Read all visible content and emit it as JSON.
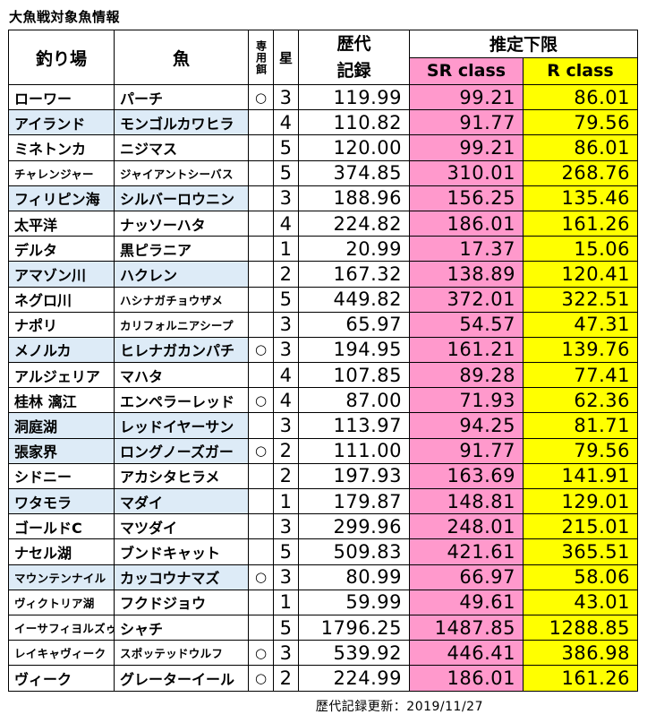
{
  "title": "大魚戦対象魚情報",
  "headers": {
    "location": "釣り場",
    "fish": "魚",
    "bait": "専用餌",
    "star": "星",
    "record_line1": "歴代",
    "record_line2": "記録",
    "limit": "推定下限",
    "sr": "SR class",
    "r": "R class"
  },
  "rows": [
    {
      "loc": "ローワー",
      "fish": "パーチ",
      "bait": "○",
      "star": "3",
      "record": "119.99",
      "sr": "99.21",
      "r": "86.01"
    },
    {
      "loc": "アイランド",
      "fish": "モンゴルカワヒラ",
      "bait": "",
      "star": "4",
      "record": "110.82",
      "sr": "91.77",
      "r": "79.56"
    },
    {
      "loc": "ミネトンカ",
      "fish": "ニジマス",
      "bait": "",
      "star": "5",
      "record": "120.00",
      "sr": "99.21",
      "r": "86.01"
    },
    {
      "loc": "チャレンジャー",
      "fish": "ジャイアントシーバス",
      "bait": "",
      "star": "5",
      "record": "374.85",
      "sr": "310.01",
      "r": "268.76"
    },
    {
      "loc": "フィリピン海",
      "fish": "シルバーロウニン",
      "bait": "",
      "star": "3",
      "record": "188.96",
      "sr": "156.25",
      "r": "135.46"
    },
    {
      "loc": "太平洋",
      "fish": "ナッソーハタ",
      "bait": "",
      "star": "4",
      "record": "224.82",
      "sr": "186.01",
      "r": "161.26"
    },
    {
      "loc": "デルタ",
      "fish": "黒ピラニア",
      "bait": "",
      "star": "1",
      "record": "20.99",
      "sr": "17.37",
      "r": "15.06"
    },
    {
      "loc": "アマゾン川",
      "fish": "ハクレン",
      "bait": "",
      "star": "2",
      "record": "167.32",
      "sr": "138.89",
      "r": "120.41"
    },
    {
      "loc": "ネグロ川",
      "fish": "ハシナガチョウザメ",
      "bait": "",
      "star": "5",
      "record": "449.82",
      "sr": "372.01",
      "r": "322.51"
    },
    {
      "loc": "ナポリ",
      "fish": "カリフォルニアシープ",
      "bait": "",
      "star": "3",
      "record": "65.97",
      "sr": "54.57",
      "r": "47.31"
    },
    {
      "loc": "メノルカ",
      "fish": "ヒレナガカンパチ",
      "bait": "○",
      "star": "3",
      "record": "194.95",
      "sr": "161.21",
      "r": "139.76"
    },
    {
      "loc": "アルジェリア",
      "fish": "マハタ",
      "bait": "",
      "star": "4",
      "record": "107.85",
      "sr": "89.28",
      "r": "77.41"
    },
    {
      "loc": "桂林 漓江",
      "fish": "エンペラーレッド",
      "bait": "○",
      "star": "4",
      "record": "87.00",
      "sr": "71.93",
      "r": "62.36"
    },
    {
      "loc": "洞庭湖",
      "fish": "レッドイヤーサン",
      "bait": "",
      "star": "3",
      "record": "113.97",
      "sr": "94.25",
      "r": "81.71"
    },
    {
      "loc": "張家界",
      "fish": "ロングノーズガー",
      "bait": "○",
      "star": "2",
      "record": "111.00",
      "sr": "91.77",
      "r": "79.56"
    },
    {
      "loc": "シドニー",
      "fish": "アカシタヒラメ",
      "bait": "",
      "star": "2",
      "record": "197.93",
      "sr": "163.69",
      "r": "141.91"
    },
    {
      "loc": "ワタモラ",
      "fish": "マダイ",
      "bait": "",
      "star": "1",
      "record": "179.87",
      "sr": "148.81",
      "r": "129.01"
    },
    {
      "loc": "ゴールドC",
      "fish": "マツダイ",
      "bait": "",
      "star": "3",
      "record": "299.96",
      "sr": "248.01",
      "r": "215.01"
    },
    {
      "loc": "ナセル湖",
      "fish": "ブンドキャット",
      "bait": "",
      "star": "5",
      "record": "509.83",
      "sr": "421.61",
      "r": "365.51"
    },
    {
      "loc": "マウンテンナイル",
      "fish": "カッコウナマズ",
      "bait": "○",
      "star": "3",
      "record": "80.99",
      "sr": "66.97",
      "r": "58.06"
    },
    {
      "loc": "ヴィクトリア湖",
      "fish": "フクドジョウ",
      "bait": "",
      "star": "1",
      "record": "59.99",
      "sr": "49.61",
      "r": "43.01"
    },
    {
      "loc": "イーサフィヨルズゥル",
      "fish": "シャチ",
      "bait": "",
      "star": "5",
      "record": "1796.25",
      "sr": "1487.85",
      "r": "1288.85"
    },
    {
      "loc": "レイキャヴィーク",
      "fish": "スポッテッドウルフ",
      "bait": "○",
      "star": "3",
      "record": "539.92",
      "sr": "446.41",
      "r": "386.98"
    },
    {
      "loc": "ヴィーク",
      "fish": "グレーターイール",
      "bait": "○",
      "star": "2",
      "record": "224.99",
      "sr": "186.01",
      "r": "161.26"
    }
  ],
  "footer": "歴代記録更新：2019/11/27"
}
